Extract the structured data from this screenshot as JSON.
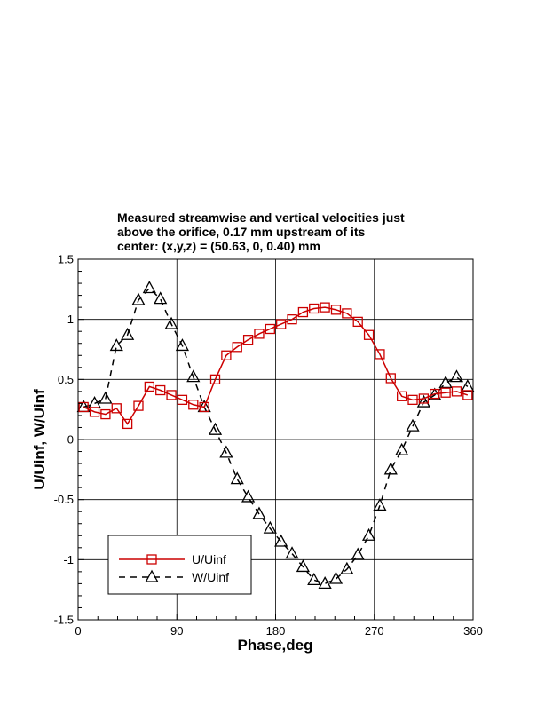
{
  "chart_data": {
    "type": "line",
    "title_lines": [
      "Measured streamwise and vertical velocities just",
      "above the orifice, 0.17 mm upstream of its",
      "center:  (x,y,z) = (50.63, 0, 0.40) mm"
    ],
    "xlabel": "Phase,deg",
    "ylabel": "U/Uinf, W/Uinf",
    "xlim": [
      0,
      360
    ],
    "ylim": [
      -1.5,
      1.5
    ],
    "xticks": [
      0,
      90,
      180,
      270,
      360
    ],
    "xtick_labels": [
      "0",
      "90",
      "180",
      "270",
      "360"
    ],
    "yticks": [
      -1.5,
      -1,
      -0.5,
      0,
      0.5,
      1,
      1.5
    ],
    "ytick_labels": [
      "-1.5",
      "-1",
      "-0.5",
      "0",
      "0.5",
      "1",
      "1.5"
    ],
    "grid": true,
    "legend_position": "bottom-left",
    "series": [
      {
        "name": "U/Uinf",
        "color": "#cc0000",
        "marker": "square",
        "line": "solid",
        "x": [
          5,
          15,
          25,
          35,
          45,
          55,
          65,
          75,
          85,
          95,
          105,
          115,
          125,
          135,
          145,
          155,
          165,
          175,
          185,
          195,
          205,
          215,
          225,
          235,
          245,
          255,
          265,
          275,
          285,
          295,
          305,
          315,
          325,
          335,
          345,
          355
        ],
        "y": [
          0.27,
          0.23,
          0.21,
          0.26,
          0.13,
          0.28,
          0.44,
          0.41,
          0.37,
          0.33,
          0.29,
          0.27,
          0.5,
          0.7,
          0.77,
          0.83,
          0.88,
          0.92,
          0.96,
          1.0,
          1.06,
          1.09,
          1.1,
          1.08,
          1.05,
          0.98,
          0.87,
          0.71,
          0.51,
          0.36,
          0.33,
          0.34,
          0.38,
          0.39,
          0.4,
          0.37
        ]
      },
      {
        "name": "W/Uinf",
        "color": "#000000",
        "marker": "triangle",
        "line": "dashed",
        "x": [
          5,
          15,
          25,
          35,
          45,
          55,
          65,
          75,
          85,
          95,
          105,
          115,
          125,
          135,
          145,
          155,
          165,
          175,
          185,
          195,
          205,
          215,
          225,
          235,
          245,
          255,
          265,
          275,
          285,
          295,
          305,
          315,
          325,
          335,
          345,
          355
        ],
        "y": [
          0.27,
          0.3,
          0.34,
          0.78,
          0.87,
          1.16,
          1.26,
          1.17,
          0.96,
          0.78,
          0.52,
          0.27,
          0.08,
          -0.11,
          -0.33,
          -0.48,
          -0.62,
          -0.74,
          -0.85,
          -0.95,
          -1.06,
          -1.17,
          -1.2,
          -1.16,
          -1.08,
          -0.96,
          -0.8,
          -0.55,
          -0.25,
          -0.09,
          0.11,
          0.31,
          0.37,
          0.47,
          0.52,
          0.44
        ]
      }
    ]
  }
}
